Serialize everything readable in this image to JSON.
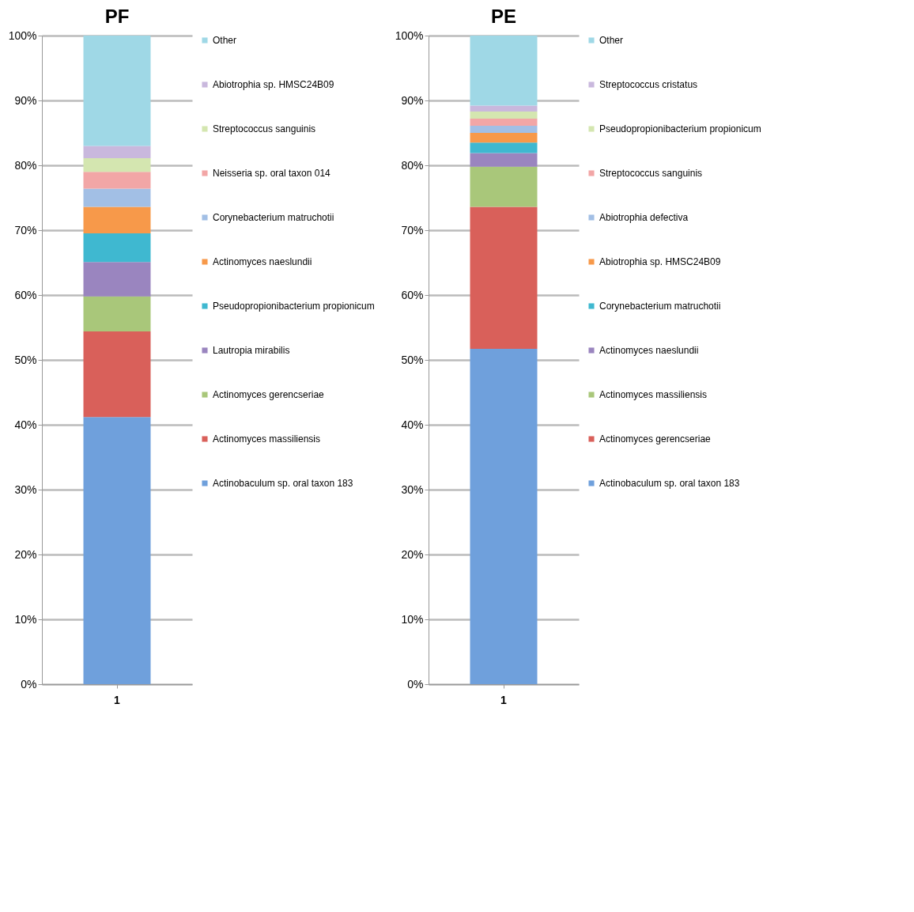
{
  "chart_data": [
    {
      "type": "bar",
      "title": "PF",
      "stacked": true,
      "categories": [
        "1"
      ],
      "ylim": [
        0,
        100
      ],
      "yticks": [
        {
          "value": 0,
          "label": "0%"
        },
        {
          "value": 10,
          "label": "10%"
        },
        {
          "value": 20,
          "label": "20%"
        },
        {
          "value": 30,
          "label": "30%"
        },
        {
          "value": 40,
          "label": "40%"
        },
        {
          "value": 50,
          "label": "50%"
        },
        {
          "value": 60,
          "label": "60%"
        },
        {
          "value": 70,
          "label": "70%"
        },
        {
          "value": 80,
          "label": "80%"
        },
        {
          "value": 90,
          "label": "90%"
        },
        {
          "value": 100,
          "label": "100%"
        }
      ],
      "grid": "y",
      "legend": "right",
      "series": [
        {
          "name": "Actinobaculum sp. oral taxon 183",
          "color": "#6fa0dc",
          "values": [
            41.2
          ]
        },
        {
          "name": "Actinomyces massiliensis",
          "color": "#d9605a",
          "values": [
            13.2
          ]
        },
        {
          "name": "Actinomyces gerencseriae",
          "color": "#a9c77a",
          "values": [
            5.4
          ]
        },
        {
          "name": "Lautropia mirabilis",
          "color": "#9a85bf",
          "values": [
            5.3
          ]
        },
        {
          "name": "Pseudopropionibacterium propionicum",
          "color": "#3fb8d0",
          "values": [
            4.4
          ]
        },
        {
          "name": "Actinomyces naeslundii",
          "color": "#f7994a",
          "values": [
            4.1
          ]
        },
        {
          "name": "Corynebacterium matruchotii",
          "color": "#a2bfe5",
          "values": [
            2.8
          ]
        },
        {
          "name": "Neisseria sp. oral taxon 014",
          "color": "#f2a6a6",
          "values": [
            2.6
          ]
        },
        {
          "name": "Streptococcus sanguinis",
          "color": "#d4e6b0",
          "values": [
            2.1
          ]
        },
        {
          "name": "Abiotrophia sp. HMSC24B09",
          "color": "#c9b8dd",
          "values": [
            1.9
          ]
        },
        {
          "name": "Other",
          "color": "#9fd8e6",
          "values": [
            17.0
          ]
        }
      ]
    },
    {
      "type": "bar",
      "title": "PE",
      "stacked": true,
      "categories": [
        "1"
      ],
      "ylim": [
        0,
        100
      ],
      "yticks": [
        {
          "value": 0,
          "label": "0%"
        },
        {
          "value": 10,
          "label": "10%"
        },
        {
          "value": 20,
          "label": "20%"
        },
        {
          "value": 30,
          "label": "30%"
        },
        {
          "value": 40,
          "label": "40%"
        },
        {
          "value": 50,
          "label": "50%"
        },
        {
          "value": 60,
          "label": "60%"
        },
        {
          "value": 70,
          "label": "70%"
        },
        {
          "value": 80,
          "label": "80%"
        },
        {
          "value": 90,
          "label": "90%"
        },
        {
          "value": 100,
          "label": "100%"
        }
      ],
      "grid": "y",
      "legend": "right",
      "series": [
        {
          "name": "Actinobaculum sp. oral taxon 183",
          "color": "#6fa0dc",
          "values": [
            51.7
          ]
        },
        {
          "name": "Actinomyces gerencseriae",
          "color": "#d9605a",
          "values": [
            21.9
          ]
        },
        {
          "name": "Actinomyces massiliensis",
          "color": "#a9c77a",
          "values": [
            6.2
          ]
        },
        {
          "name": "Actinomyces naeslundii",
          "color": "#9a85bf",
          "values": [
            2.1
          ]
        },
        {
          "name": "Corynebacterium matruchotii",
          "color": "#3fb8d0",
          "values": [
            1.6
          ]
        },
        {
          "name": "Abiotrophia sp. HMSC24B09",
          "color": "#f7994a",
          "values": [
            1.5
          ]
        },
        {
          "name": "Abiotrophia defectiva",
          "color": "#a2bfe5",
          "values": [
            1.1
          ]
        },
        {
          "name": "Streptococcus sanguinis",
          "color": "#f2a6a6",
          "values": [
            1.1
          ]
        },
        {
          "name": "Pseudopropionibacterium propionicum",
          "color": "#d4e6b0",
          "values": [
            1.1
          ]
        },
        {
          "name": "Streptococcus cristatus",
          "color": "#c9b8dd",
          "values": [
            0.9
          ]
        },
        {
          "name": "Other",
          "color": "#9fd8e6",
          "values": [
            10.8
          ]
        }
      ]
    }
  ]
}
